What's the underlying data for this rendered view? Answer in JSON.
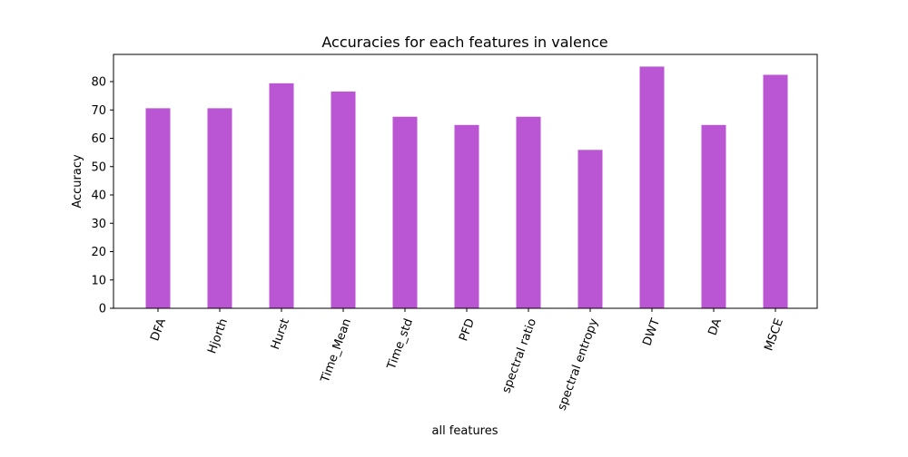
{
  "chart_data": {
    "type": "bar",
    "title": "Accuracies for each features in valence",
    "xlabel": "all features",
    "ylabel": "Accuracy",
    "categories": [
      "DFA",
      "Hjorth",
      "Hurst",
      "Time_Mean",
      "Time_std",
      "PFD",
      "spectral ratio",
      "spectral entropy",
      "DWT",
      "DA",
      "MSCE"
    ],
    "values": [
      70.6,
      70.6,
      79.4,
      76.5,
      67.6,
      64.7,
      67.6,
      55.9,
      85.3,
      64.7,
      82.4
    ],
    "ylim": [
      0,
      89.6
    ],
    "yticks": [
      0,
      10,
      20,
      30,
      40,
      50,
      60,
      70,
      80
    ],
    "bar_color": "#ba55d3",
    "grid": false,
    "xtick_rotation_deg": 70
  }
}
